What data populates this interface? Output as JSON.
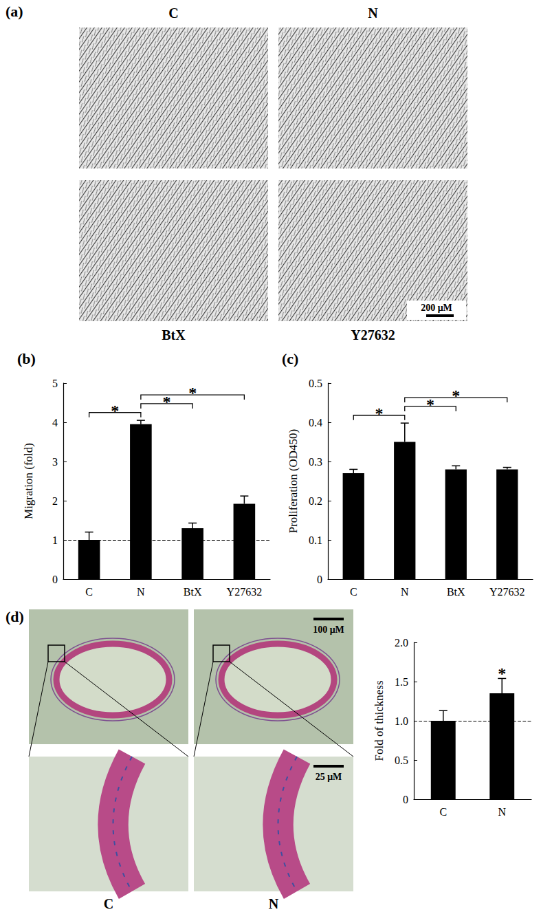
{
  "panel_a": {
    "label": "(a)",
    "images": [
      "C",
      "N",
      "BtX",
      "Y27632"
    ],
    "scale_bar": "200 μM"
  },
  "panel_d": {
    "label": "(d)",
    "images": [
      "C",
      "N"
    ],
    "scale_bars": [
      "100 μM",
      "25 μM"
    ]
  },
  "chart_data": [
    {
      "type": "bar",
      "title": "(b)",
      "y_label": "Migration (fold)",
      "categories": [
        "C",
        "N",
        "BtX",
        "Y27632"
      ],
      "values": [
        1.0,
        3.95,
        1.3,
        1.92
      ],
      "errors": [
        0.2,
        0.1,
        0.13,
        0.2
      ],
      "color": "#000000",
      "ylim": [
        0,
        5
      ],
      "yticks": [
        0,
        1,
        2,
        3,
        4,
        5
      ],
      "grid": false,
      "reference_lines": [
        {
          "value": 1,
          "line_style": "dashed"
        }
      ],
      "significance": [
        {
          "from": "C",
          "to": "N",
          "label": "*"
        },
        {
          "from": "N",
          "to": "BtX",
          "label": "*"
        },
        {
          "from": "N",
          "to": "Y27632",
          "label": "*"
        }
      ]
    },
    {
      "type": "bar",
      "title": "(c)",
      "y_label": "Proliferation (OD450)",
      "categories": [
        "C",
        "N",
        "BtX",
        "Y27632"
      ],
      "values": [
        0.27,
        0.35,
        0.28,
        0.28
      ],
      "errors": [
        0.01,
        0.048,
        0.009,
        0.005
      ],
      "color": "#000000",
      "ylim": [
        0,
        0.5
      ],
      "yticks": [
        0,
        0.1,
        0.2,
        0.3,
        0.4,
        0.5
      ],
      "grid": false,
      "significance": [
        {
          "from": "C",
          "to": "N",
          "label": "*"
        },
        {
          "from": "N",
          "to": "BtX",
          "label": "*"
        },
        {
          "from": "N",
          "to": "Y27632",
          "label": "*"
        }
      ]
    },
    {
      "type": "bar",
      "y_label": "Fold of thickness",
      "categories": [
        "C",
        "N"
      ],
      "values": [
        1.0,
        1.35
      ],
      "errors": [
        0.13,
        0.19
      ],
      "color": "#000000",
      "ylim": [
        0,
        2
      ],
      "yticks": [
        0,
        0.5,
        {
          "value": 1,
          "label": "1.0"
        },
        1.5,
        {
          "value": 2,
          "label": "2.0"
        }
      ],
      "grid": false,
      "reference_lines": [
        {
          "value": 1,
          "line_style": "dashed"
        }
      ],
      "significance": [
        {
          "category": "N",
          "label": "*"
        }
      ]
    }
  ]
}
